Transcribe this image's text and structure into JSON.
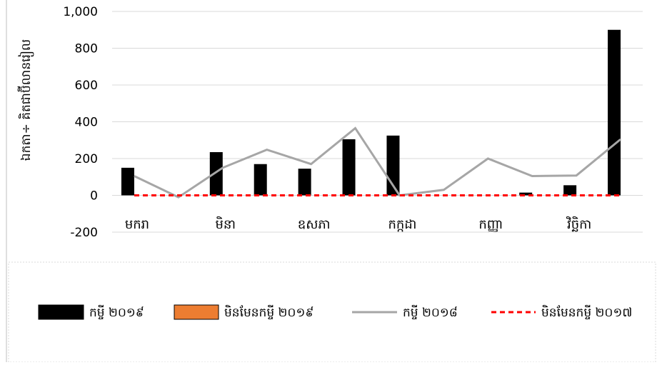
{
  "chart_data": {
    "type": "bar",
    "ylabel": "ឯកតា÷ គិតជាប៊ីលានរៀល",
    "ylim": [
      -200,
      1000
    ],
    "yticks": [
      -200,
      0,
      200,
      400,
      600,
      800,
      1000
    ],
    "ytick_labels": [
      "-200",
      "0",
      "200",
      "400",
      "600",
      "800",
      "1,000"
    ],
    "grid": true,
    "legend_position": "bottom",
    "categories": [
      "c1",
      "c2",
      "c3",
      "c4",
      "c5",
      "c6",
      "c7",
      "c8",
      "c9",
      "c10",
      "c11",
      "c12"
    ],
    "x_tick_labels": [
      {
        "index": 0,
        "label": "មករា"
      },
      {
        "index": 2,
        "label": "មិនា"
      },
      {
        "index": 4,
        "label": "ឧសភា"
      },
      {
        "index": 6,
        "label": "កក្កដា"
      },
      {
        "index": 8,
        "label": "កញ្ញា"
      },
      {
        "index": 10,
        "label": "វិច្ឆិកា"
      }
    ],
    "series": [
      {
        "name": "កម្ចី ២០១៩",
        "kind": "bar",
        "color": "#000000",
        "values": [
          150,
          0,
          235,
          170,
          145,
          305,
          325,
          0,
          0,
          15,
          55,
          900
        ]
      },
      {
        "name": "មិនមែនកម្ចី ២០១៩",
        "kind": "bar",
        "color": "#ED7D31",
        "values": [
          0,
          0,
          0,
          0,
          0,
          0,
          0,
          0,
          0,
          0,
          0,
          0
        ]
      },
      {
        "name": "កម្ចី ២០១៨",
        "kind": "line",
        "color": "#A6A6A6",
        "values": [
          105,
          -10,
          150,
          248,
          170,
          365,
          0,
          30,
          200,
          105,
          108,
          305
        ]
      },
      {
        "name": "មិនមែនកម្ចី ២០១៧",
        "kind": "dashed-line",
        "color": "#FF0000",
        "values": [
          0,
          0,
          0,
          0,
          0,
          0,
          0,
          0,
          0,
          0,
          0,
          0
        ]
      }
    ]
  }
}
